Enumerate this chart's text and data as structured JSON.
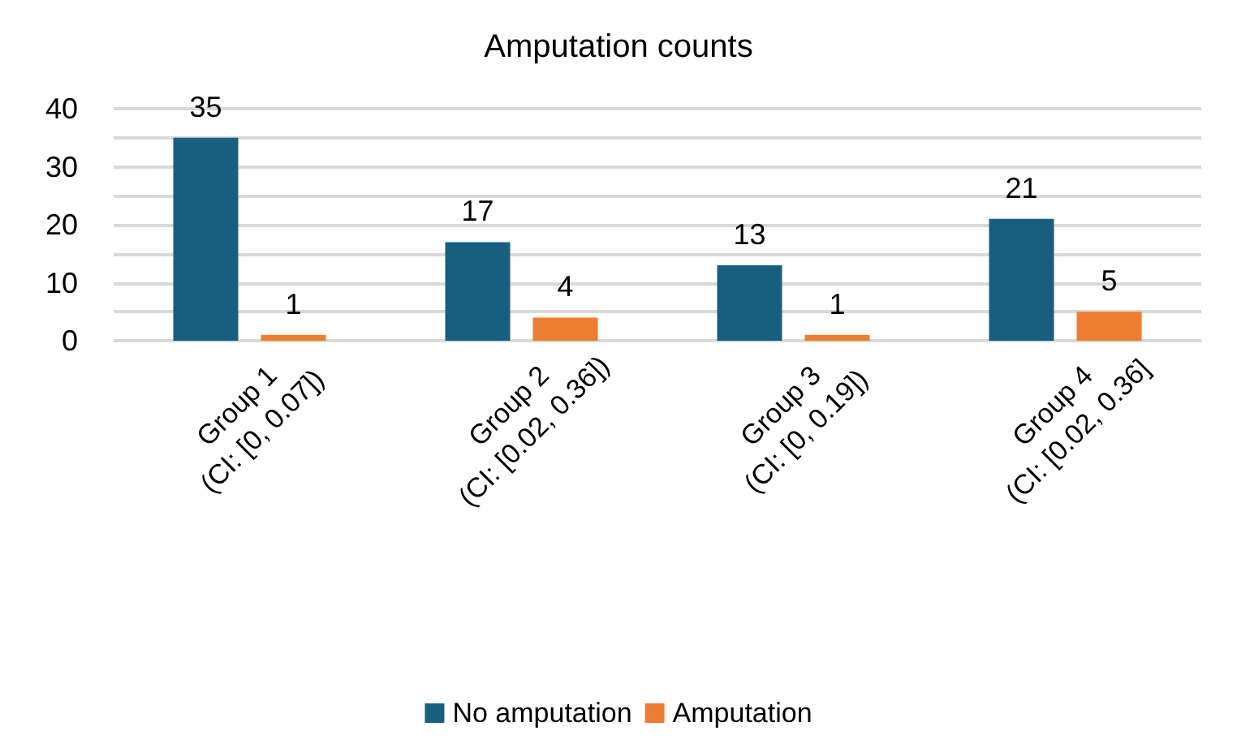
{
  "chart_data": {
    "type": "bar",
    "title": "Amputation counts",
    "categories": [
      "Group 1\n(CI: [0, 0.07])",
      "Group 2\n(CI: [0.02, 0.36])",
      "Group 3\n(CI: [0, 0.19])",
      "Group 4\n(CI: [0.02, 0.36]"
    ],
    "series": [
      {
        "name": "No amputation",
        "color": "#175e7f",
        "values": [
          35,
          17,
          13,
          21
        ]
      },
      {
        "name": "Amputation",
        "color": "#ed7d31",
        "values": [
          1,
          4,
          1,
          5
        ]
      }
    ],
    "ylim": [
      0,
      40
    ],
    "yticks": [
      0,
      {
        "value": 5,
        "label": null
      },
      10,
      {
        "value": 15,
        "label": null
      },
      20,
      {
        "value": 25,
        "label": null
      },
      30,
      {
        "value": 35,
        "label": null
      },
      40
    ],
    "grid": true,
    "legend": "bottom",
    "data_labels": true
  }
}
